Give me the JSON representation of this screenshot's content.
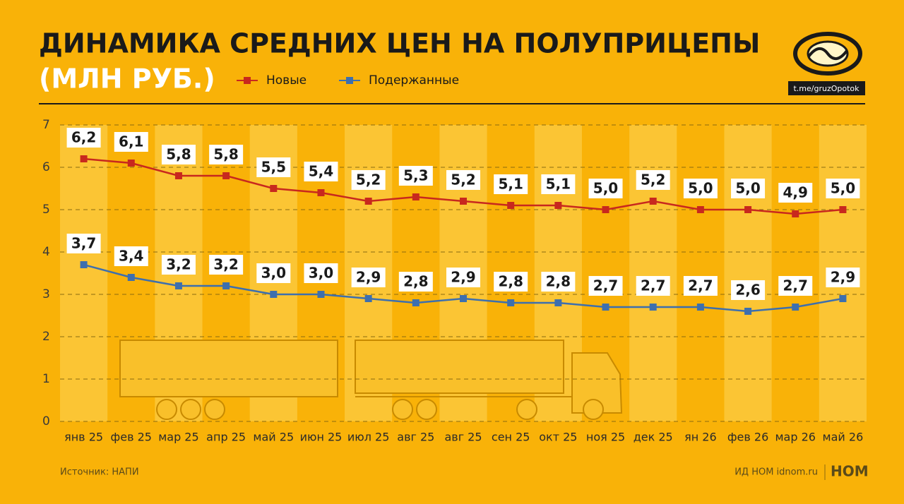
{
  "chart_data": {
    "type": "line",
    "title": "ДИНАМИКА СРЕДНИХ ЦЕН НА ПОЛУПРИЦЕПЫ",
    "subtitle": "(МЛН РУБ.)",
    "categories": [
      "янв 25",
      "фев 25",
      "мар 25",
      "апр 25",
      "май 25",
      "июн 25",
      "июл 25",
      "авг 25",
      "авг 25",
      "сен 25",
      "окт 25",
      "ноя 25",
      "дек 25",
      "ян 26",
      "фев 26",
      "мар 26",
      "май 26"
    ],
    "series": [
      {
        "name": "Новые",
        "color": "#c8281e",
        "values": [
          6.2,
          6.1,
          5.8,
          5.8,
          5.5,
          5.4,
          5.2,
          5.3,
          5.2,
          5.1,
          5.1,
          5.0,
          5.2,
          5.0,
          5.0,
          4.9,
          5.0
        ],
        "value_labels": [
          "6,2",
          "6,1",
          "5,8",
          "5,8",
          "5,5",
          "5,4",
          "5,2",
          "5,3",
          "5,2",
          "5,1",
          "5,1",
          "5,0",
          "5,2",
          "5,0",
          "5,0",
          "4,9",
          "5,0"
        ]
      },
      {
        "name": "Подержанные",
        "color": "#3d6fae",
        "values": [
          3.7,
          3.4,
          3.2,
          3.2,
          3.0,
          3.0,
          2.9,
          2.8,
          2.9,
          2.8,
          2.8,
          2.7,
          2.7,
          2.7,
          2.6,
          2.7,
          2.9
        ],
        "value_labels": [
          "3,7",
          "3,4",
          "3,2",
          "3,2",
          "3,0",
          "3,0",
          "2,9",
          "2,8",
          "2,9",
          "2,8",
          "2,8",
          "2,7",
          "2,7",
          "2,7",
          "2,6",
          "2,7",
          "2,9"
        ]
      }
    ],
    "ylim": [
      0,
      7
    ],
    "yticks": [
      0,
      1,
      2,
      3,
      4,
      5,
      6,
      7
    ],
    "grid": true,
    "source": "Источник: НАПИ"
  },
  "logo_url": "t.me/gruzOpotok",
  "credit": "ИД НОМ idnom.ru",
  "brand": "НОМ"
}
